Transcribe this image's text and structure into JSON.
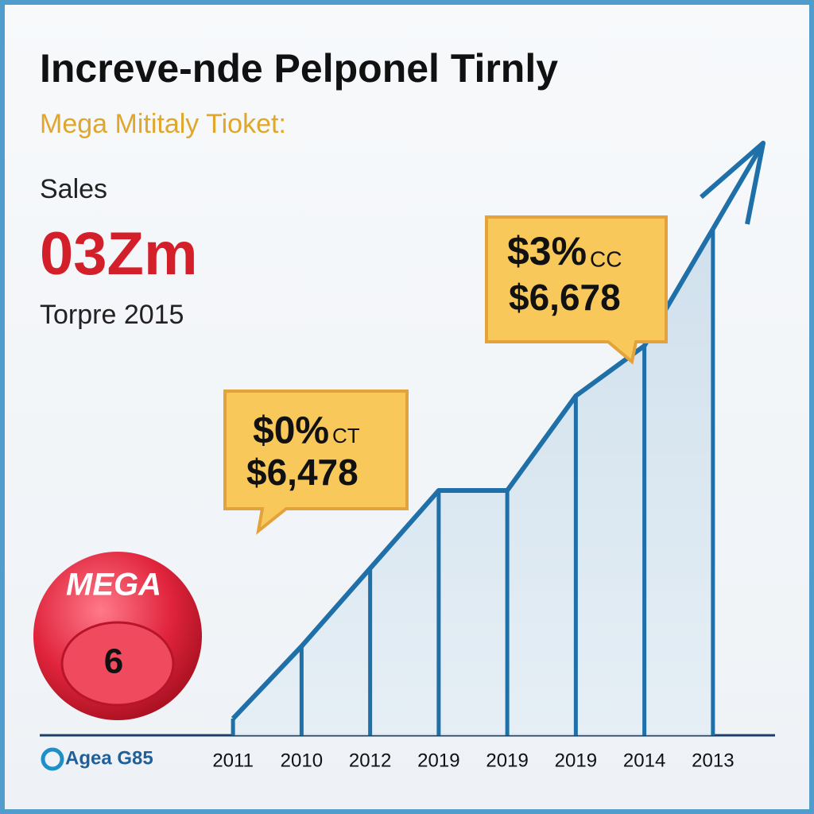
{
  "header": {
    "title": "Increve-nde Pelponel Tirnly",
    "subtitle": "Mega Mititaly Tioket:"
  },
  "stats": {
    "label": "Sales",
    "value": "03Zm",
    "note": "Torpre 2015"
  },
  "callouts": [
    {
      "line1": "$0%",
      "suffix": "CT",
      "line2": "$6,478"
    },
    {
      "line1": "$3%",
      "suffix": "CC",
      "line2": "$6,678"
    }
  ],
  "ball": {
    "brand": "MEGA",
    "number": "6"
  },
  "logo": "Agea G85",
  "chart_data": {
    "type": "area",
    "categories": [
      "2011",
      "2010",
      "2012",
      "2019",
      "2019",
      "2019",
      "2014",
      "2013"
    ],
    "values": [
      3,
      16,
      30,
      44,
      44,
      61,
      70,
      91
    ],
    "ylim": [
      0,
      100
    ],
    "color": "#1f6fa8"
  }
}
